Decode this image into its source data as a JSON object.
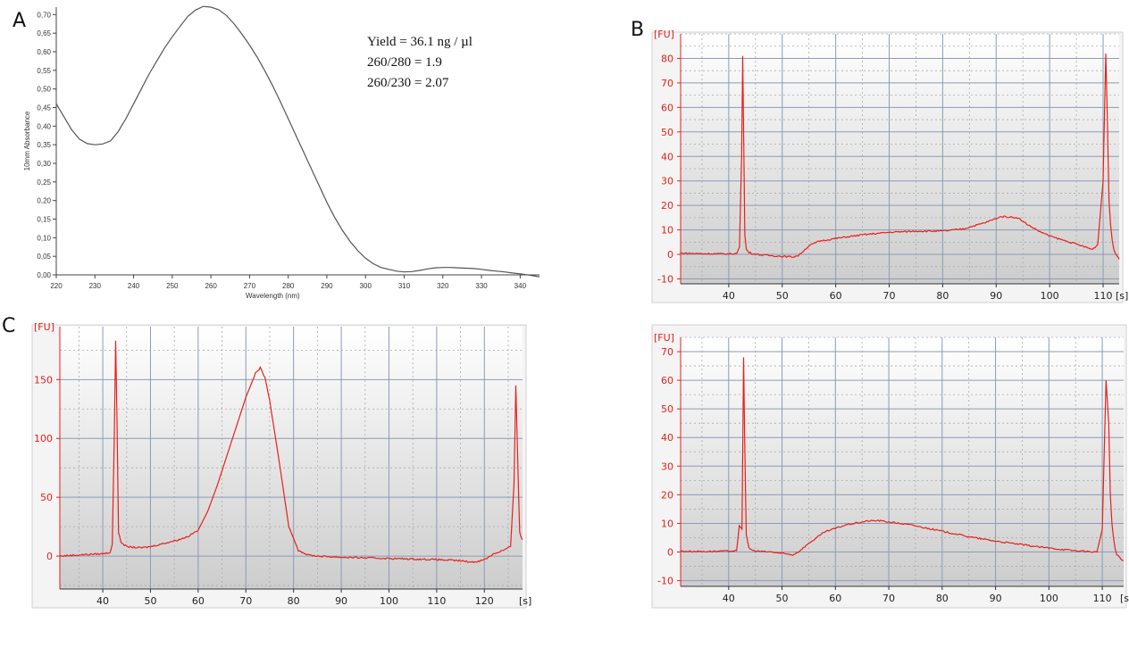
{
  "colors": {
    "trace": "#e8201a",
    "absorbance_line": "#555555",
    "grid_major": "#8c9bb4",
    "grid_minor": "#a9a9a9",
    "plot_bg_top": "#ffffff",
    "plot_bg_bottom": "#cdcdcd"
  },
  "panel_labels": {
    "a": "A",
    "b": "B",
    "c": "C"
  },
  "stats": {
    "yield": "Yield  = 36.1  ng / µl",
    "ratio_280": "260/280  = 1.9",
    "ratio_230": "260/230  = 2.07"
  },
  "chart_data": [
    {
      "id": "A",
      "type": "line",
      "title": "",
      "xlabel": "Wavelength (nm)",
      "ylabel": "10mm Absorbance",
      "xlim": [
        220,
        345
      ],
      "ylim": [
        0,
        0.72
      ],
      "x_ticks": [
        "220",
        "230",
        "240",
        "250",
        "260",
        "270",
        "280",
        "290",
        "300",
        "310",
        "320",
        "330",
        "340"
      ],
      "y_ticks": [
        "0,00",
        "0,05",
        "0,10",
        "0,15",
        "0,20",
        "0,25",
        "0,30",
        "0,35",
        "0,40",
        "0,45",
        "0,50",
        "0,55",
        "0,60",
        "0,65",
        "0,70"
      ],
      "series": [
        {
          "name": "absorbance",
          "x": [
            220,
            222,
            224,
            226,
            228,
            230,
            232,
            234,
            236,
            238,
            240,
            242,
            244,
            246,
            248,
            250,
            252,
            254,
            256,
            258,
            260,
            262,
            264,
            266,
            268,
            270,
            272,
            274,
            276,
            278,
            280,
            282,
            284,
            286,
            288,
            290,
            292,
            294,
            296,
            298,
            300,
            302,
            304,
            306,
            308,
            310,
            312,
            314,
            316,
            318,
            320,
            322,
            324,
            326,
            328,
            330,
            332,
            334,
            336,
            338,
            340,
            342,
            345
          ],
          "y": [
            0.46,
            0.425,
            0.39,
            0.365,
            0.353,
            0.35,
            0.352,
            0.36,
            0.385,
            0.42,
            0.46,
            0.5,
            0.54,
            0.575,
            0.61,
            0.64,
            0.668,
            0.695,
            0.712,
            0.722,
            0.72,
            0.713,
            0.698,
            0.675,
            0.648,
            0.618,
            0.585,
            0.548,
            0.508,
            0.465,
            0.42,
            0.375,
            0.33,
            0.285,
            0.24,
            0.195,
            0.155,
            0.12,
            0.09,
            0.065,
            0.045,
            0.03,
            0.02,
            0.015,
            0.01,
            0.008,
            0.009,
            0.012,
            0.016,
            0.019,
            0.02,
            0.02,
            0.019,
            0.018,
            0.017,
            0.015,
            0.012,
            0.01,
            0.008,
            0.005,
            0.003,
            0.0,
            -0.005
          ]
        }
      ]
    },
    {
      "id": "B",
      "type": "line",
      "ylabel": "[FU]",
      "xlabel": "[s]",
      "xlim": [
        31,
        113
      ],
      "ylim": [
        -12,
        90
      ],
      "x_ticks": [
        "40",
        "50",
        "60",
        "70",
        "80",
        "90",
        "100",
        "110"
      ],
      "y_ticks": [
        "-10",
        "0",
        "10",
        "20",
        "30",
        "40",
        "50",
        "60",
        "70",
        "80"
      ],
      "series": [
        {
          "name": "fluorescence",
          "x": [
            31,
            35,
            40,
            41.5,
            42,
            42.4,
            42.6,
            42.8,
            43,
            43.3,
            43.8,
            44.5,
            46,
            48,
            50,
            52,
            53,
            55,
            57,
            60,
            65,
            70,
            75,
            80,
            84,
            88,
            91,
            94,
            96,
            98,
            100,
            103,
            106,
            108,
            109,
            110,
            110.5,
            110.8,
            111.1,
            111.4,
            111.7,
            112,
            112.3,
            112.6,
            112.9,
            113
          ],
          "y": [
            0.5,
            0.3,
            0.2,
            0.4,
            3,
            40,
            81,
            45,
            8,
            2,
            0.8,
            0.3,
            -0.2,
            -0.5,
            -0.8,
            -1,
            -0.5,
            3.5,
            5.5,
            6.5,
            8,
            9,
            9.5,
            9.5,
            10.5,
            13,
            15.5,
            15,
            12,
            9.5,
            7.5,
            5.5,
            3.5,
            2,
            4,
            30,
            82,
            55,
            22,
            12,
            6,
            2,
            0.5,
            -0.5,
            -1.5,
            -2
          ]
        }
      ]
    },
    {
      "id": "C",
      "type": "line",
      "ylabel": "[FU]",
      "xlabel": "[s]",
      "xlim": [
        31,
        128
      ],
      "ylim": [
        -28,
        195
      ],
      "x_ticks": [
        "40",
        "50",
        "60",
        "70",
        "80",
        "90",
        "100",
        "110",
        "120"
      ],
      "y_ticks": [
        "0",
        "50",
        "100",
        "150"
      ],
      "series": [
        {
          "name": "fluorescence",
          "x": [
            31,
            35,
            40,
            41.5,
            42,
            42.4,
            42.7,
            43,
            43.3,
            43.8,
            45,
            48,
            50,
            52,
            54,
            56,
            58,
            60,
            62,
            64,
            66,
            68,
            70,
            72,
            73,
            74,
            75,
            77,
            79,
            81,
            83,
            85,
            90,
            100,
            110,
            115,
            117,
            118,
            120,
            122,
            124,
            125.5,
            126.2,
            126.6,
            127,
            127.4,
            127.8,
            128
          ],
          "y": [
            0,
            1,
            2,
            3,
            10,
            100,
            183,
            110,
            20,
            12,
            8,
            7,
            8,
            10,
            12,
            14,
            17,
            22,
            38,
            60,
            85,
            110,
            135,
            155,
            160,
            152,
            132,
            80,
            25,
            5,
            1,
            0,
            -1,
            -2,
            -3,
            -4,
            -5,
            -5,
            -3,
            2,
            5,
            8,
            60,
            145,
            80,
            20,
            15,
            14
          ]
        }
      ]
    },
    {
      "id": "D",
      "type": "line",
      "ylabel": "[FU]",
      "xlabel": "[s]",
      "xlim": [
        31,
        114
      ],
      "ylim": [
        -12,
        75
      ],
      "x_ticks": [
        "40",
        "50",
        "60",
        "70",
        "80",
        "90",
        "100",
        "110"
      ],
      "y_ticks": [
        "-10",
        "0",
        "10",
        "20",
        "30",
        "40",
        "50",
        "60",
        "70"
      ],
      "series": [
        {
          "name": "fluorescence",
          "x": [
            31,
            35,
            40,
            41.5,
            42,
            42.5,
            42.8,
            43,
            43.3,
            43.8,
            44.5,
            46,
            48,
            50,
            52,
            53,
            55,
            58,
            62,
            66,
            68,
            70,
            74,
            78,
            82,
            86,
            90,
            94,
            98,
            102,
            106,
            109,
            110,
            110.7,
            111.2,
            111.5,
            111.8,
            112.1,
            112.4,
            112.7,
            113,
            113.5,
            114
          ],
          "y": [
            0.3,
            0.2,
            0.3,
            0.5,
            9,
            8,
            68,
            40,
            6,
            1.5,
            0.5,
            0.2,
            0,
            -0.5,
            -1,
            0,
            3,
            7,
            9.5,
            10.8,
            11,
            10.5,
            9.5,
            8,
            6.5,
            5,
            3.8,
            2.8,
            1.8,
            1,
            0.3,
            0,
            8,
            60,
            45,
            20,
            10,
            5,
            1.5,
            -1,
            -1.5,
            -2.5,
            -3
          ]
        }
      ]
    }
  ]
}
